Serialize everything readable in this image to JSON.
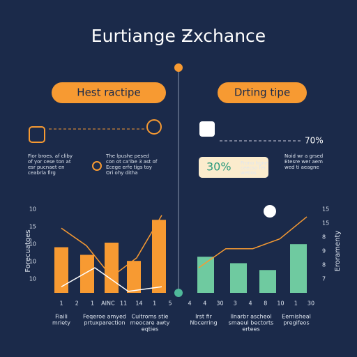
{
  "title": "Eurtiange Ƶxchance",
  "left": {
    "pill": "Hest ractipe",
    "notes": [
      "Fior broes. af cliby",
      "of yor cese ton at",
      "esr pucnaet en",
      "ceabrla firg"
    ],
    "notes2": [
      "The lpushe pesed",
      "con ot ca'ibe 3 ast of",
      "Ecege erfe tigs toy",
      "Ori ohy ditha"
    ]
  },
  "right": {
    "pill": "Drting tipe",
    "stat_a": "70%",
    "stat_b": "30%",
    "stat_b_note": [
      "Frono hgne",
      "ceecso fer",
      "wetios"
    ],
    "notes": [
      "Noid wr a grsed",
      "Etesre wer aem",
      "wed ti aeagne"
    ]
  },
  "charts": [
    {
      "y_title": "Forecuatges",
      "y_labels": [
        "10",
        "15",
        "10",
        "10",
        "10"
      ],
      "x_labels": [
        "1",
        "2",
        "1",
        "AINC",
        "11",
        "14",
        "1",
        "5"
      ],
      "captions": [
        [
          "Fiaili",
          "mriety"
        ],
        [
          "Feqeroe amyed",
          "prtuxparection"
        ],
        [
          "Cuitroms stie",
          "meocare awty",
          "eqties"
        ]
      ],
      "ylim": [
        0,
        11
      ],
      "bars": [
        6.0,
        5.0,
        6.6,
        4.2,
        9.6
      ],
      "bar_color": "#f79a32",
      "lines": [
        {
          "color": "#f79a32",
          "values": [
            8.5,
            6.2,
            2.1,
            4.6,
            10.2
          ]
        },
        {
          "color": "#ffffff",
          "values": [
            0.8,
            3.3,
            0.2,
            0.8
          ]
        }
      ]
    },
    {
      "y_title": "Eroramenty",
      "y_labels": [
        "15",
        "15",
        "8",
        "9",
        "8",
        "7"
      ],
      "x_labels": [
        "4",
        "4",
        "30",
        "3",
        "4",
        "8",
        "10",
        "1",
        "30"
      ],
      "captions": [
        [
          "Irst fir",
          "Nbcerring"
        ],
        [
          "Ilnarbr ascheol",
          "smaeul bectorts",
          "ertees"
        ],
        [
          "Eernisheal",
          "pregifeos"
        ]
      ],
      "ylim": [
        0,
        11
      ],
      "bars": [
        4.75,
        3.9,
        3.0,
        6.4
      ],
      "bar_color": "#6fcaa0",
      "lines": [
        {
          "color": "#f79a32",
          "values": [
            3.3,
            5.8,
            5.8,
            7.1,
            10.0
          ]
        }
      ]
    }
  ]
}
